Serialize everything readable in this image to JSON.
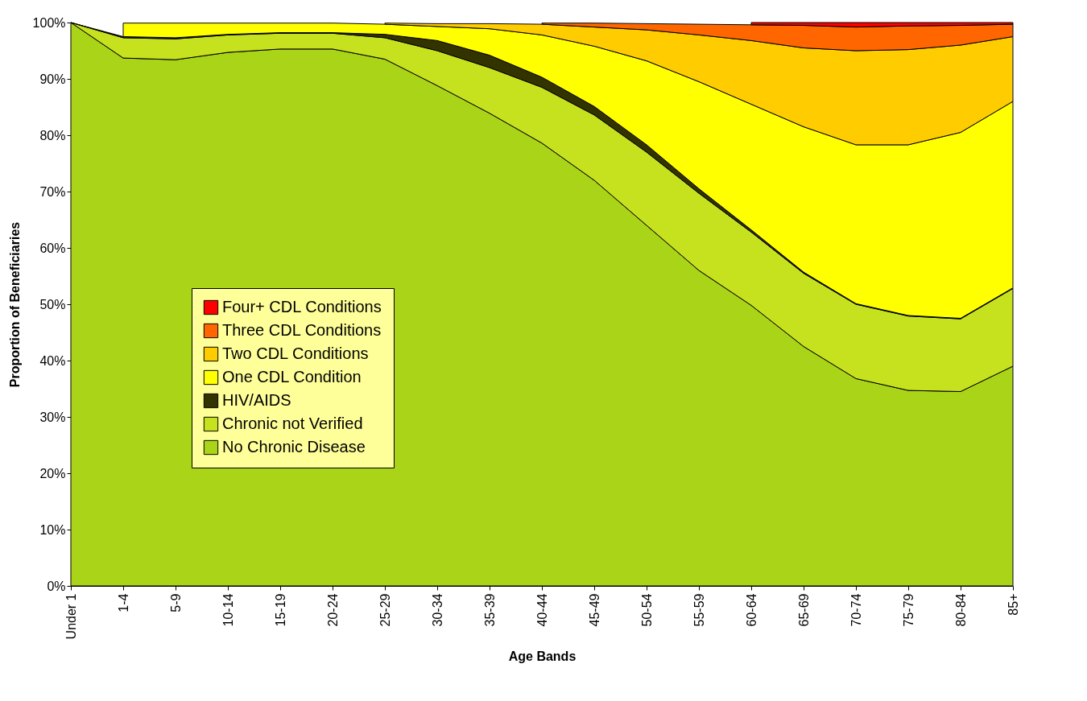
{
  "chart_data": {
    "type": "area",
    "stacked": true,
    "xlabel": "Age Bands",
    "ylabel": "Proportion of Beneficiaries",
    "categories": [
      "Under 1",
      "1-4",
      "5-9",
      "10-14",
      "15-19",
      "20-24",
      "25-29",
      "30-34",
      "35-39",
      "40-44",
      "45-49",
      "50-54",
      "55-59",
      "60-64",
      "65-69",
      "70-74",
      "75-79",
      "80-84",
      "85+"
    ],
    "series": [
      {
        "name": "No Chronic Disease",
        "color": "#aad418",
        "values": [
          100,
          93.7,
          93.4,
          94.7,
          95.3,
          95.3,
          93.5,
          88.8,
          83.9,
          78.6,
          72,
          64,
          56,
          49.8,
          42.5,
          36.8,
          34.7,
          34.5,
          39
        ]
      },
      {
        "name": "Chronic not Verified",
        "color": "#c6e11e",
        "values": [
          0,
          3.6,
          3.7,
          3.1,
          2.8,
          2.8,
          3.8,
          6.2,
          8.1,
          9.9,
          11.6,
          13,
          13.7,
          13,
          13,
          13.2,
          13.2,
          12.9,
          13.8
        ]
      },
      {
        "name": "HIV/AIDS",
        "color": "#333300",
        "values": [
          0,
          0.2,
          0.2,
          0.1,
          0.1,
          0.1,
          0.6,
          1.8,
          2.2,
          1.8,
          1.5,
          1.3,
          0.8,
          0.4,
          0.2,
          0.1,
          0.1,
          0.1,
          0.1
        ]
      },
      {
        "name": "One CDL Condition",
        "color": "#ffff00",
        "values": [
          null,
          2.4,
          2.6,
          2,
          1.7,
          1.7,
          1.8,
          2.5,
          4.7,
          7.5,
          10.7,
          14.9,
          19,
          22.3,
          25.8,
          28.2,
          30.3,
          33,
          33.1
        ]
      },
      {
        "name": "Two CDL Conditions",
        "color": "#ffcc00",
        "values": [
          null,
          null,
          null,
          null,
          null,
          null,
          0.2,
          0.5,
          0.9,
          1.9,
          3.4,
          5.5,
          8.3,
          11.3,
          14,
          16.7,
          16.9,
          15.5,
          11.5
        ]
      },
      {
        "name": "Three CDL Conditions",
        "color": "#ff6600",
        "values": [
          null,
          null,
          null,
          null,
          null,
          null,
          null,
          null,
          null,
          0.2,
          0.7,
          1.1,
          1.9,
          2.8,
          4,
          4.2,
          4.2,
          3.5,
          2.2
        ]
      },
      {
        "name": "Four+ CDL Conditions",
        "color": "#ff0000",
        "values": [
          null,
          null,
          null,
          null,
          null,
          null,
          null,
          null,
          null,
          null,
          null,
          null,
          null,
          0.4,
          0.5,
          0.8,
          0.6,
          0.5,
          0.3
        ]
      }
    ],
    "ylim": [
      0,
      100
    ],
    "yticks": [
      {
        "value": 0,
        "label": "0%"
      },
      {
        "value": 10,
        "label": "10%"
      },
      {
        "value": 20,
        "label": "20%"
      },
      {
        "value": 30,
        "label": "30%"
      },
      {
        "value": 40,
        "label": "40%"
      },
      {
        "value": 50,
        "label": "50%"
      },
      {
        "value": 60,
        "label": "60%"
      },
      {
        "value": 70,
        "label": "70%"
      },
      {
        "value": 80,
        "label": "80%"
      },
      {
        "value": 90,
        "label": "90%"
      },
      {
        "value": 100,
        "label": "100%"
      }
    ],
    "grid": false,
    "legend": "left"
  }
}
